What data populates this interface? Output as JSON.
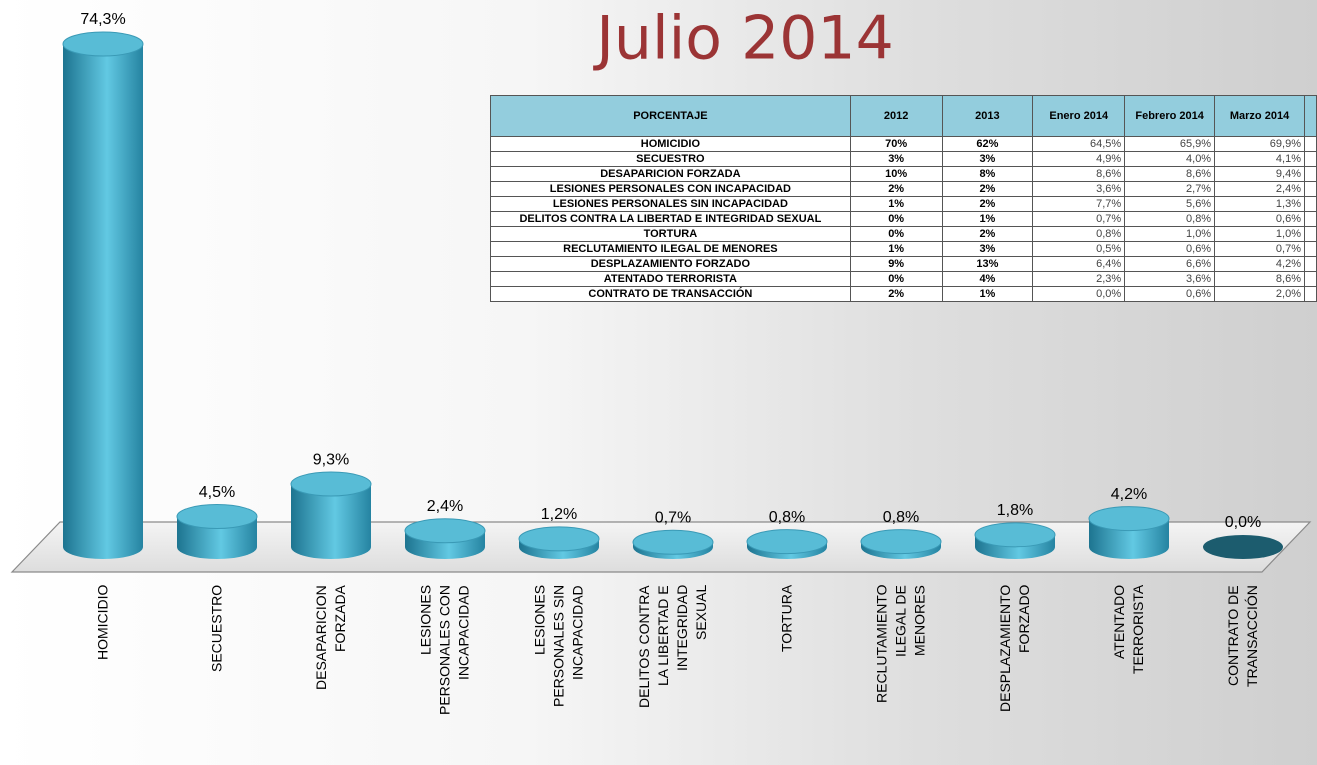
{
  "chart_data": {
    "type": "bar3d",
    "title": "Julio 2014",
    "categories": [
      "HOMICIDIO",
      "SECUESTRO",
      "DESAPARICION FORZADA",
      "LESIONES PERSONALES CON INCAPACIDAD",
      "LESIONES PERSONALES SIN INCAPACIDAD",
      "DELITOS CONTRA LA LIBERTAD E INTEGRIDAD SEXUAL",
      "TORTURA",
      "RECLUTAMIENTO ILEGAL DE MENORES",
      "DESPLAZAMIENTO FORZADO",
      "ATENTADO TERRORISTA",
      "CONTRATO DE TRANSACCIÓN"
    ],
    "values": [
      74.3,
      4.5,
      9.3,
      2.4,
      1.2,
      0.7,
      0.8,
      0.8,
      1.8,
      4.2,
      0.0
    ],
    "value_labels": [
      "74,3%",
      "4,5%",
      "9,3%",
      "2,4%",
      "1,2%",
      "0,7%",
      "0,8%",
      "0,8%",
      "1,8%",
      "4,2%",
      "0,0%"
    ],
    "color": "#3aa6c4"
  },
  "table": {
    "header": [
      "PORCENTAJE",
      "2012",
      "2013",
      "Enero 2014",
      "Febrero 2014",
      "Marzo 2014"
    ],
    "rows": [
      [
        "HOMICIDIO",
        "70%",
        "62%",
        "64,5%",
        "65,9%",
        "69,9%"
      ],
      [
        "SECUESTRO",
        "3%",
        "3%",
        "4,9%",
        "4,0%",
        "4,1%"
      ],
      [
        "DESAPARICION FORZADA",
        "10%",
        "8%",
        "8,6%",
        "8,6%",
        "9,4%"
      ],
      [
        "LESIONES PERSONALES CON INCAPACIDAD",
        "2%",
        "2%",
        "3,6%",
        "2,7%",
        "2,4%"
      ],
      [
        "LESIONES PERSONALES SIN INCAPACIDAD",
        "1%",
        "2%",
        "7,7%",
        "5,6%",
        "1,3%"
      ],
      [
        "DELITOS CONTRA LA LIBERTAD E INTEGRIDAD SEXUAL",
        "0%",
        "1%",
        "0,7%",
        "0,8%",
        "0,6%"
      ],
      [
        "TORTURA",
        "0%",
        "2%",
        "0,8%",
        "1,0%",
        "1,0%"
      ],
      [
        "RECLUTAMIENTO ILEGAL DE MENORES",
        "1%",
        "3%",
        "0,5%",
        "0,6%",
        "0,7%"
      ],
      [
        "DESPLAZAMIENTO FORZADO",
        "9%",
        "13%",
        "6,4%",
        "6,6%",
        "4,2%"
      ],
      [
        "ATENTADO TERRORISTA",
        "0%",
        "4%",
        "2,3%",
        "3,6%",
        "8,6%"
      ],
      [
        "CONTRATO DE TRANSACCIÓN",
        "2%",
        "1%",
        "0,0%",
        "0,6%",
        "2,0%"
      ]
    ]
  }
}
